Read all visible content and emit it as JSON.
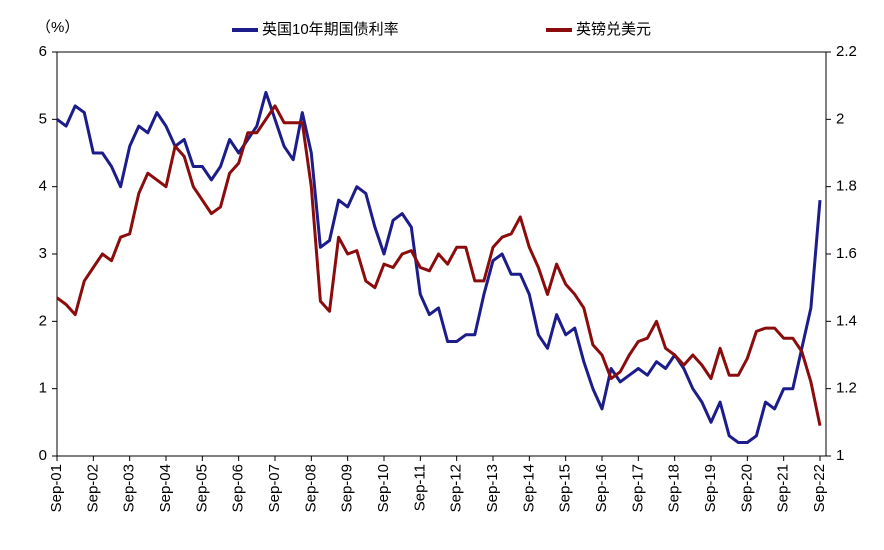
{
  "chart_data": {
    "type": "line",
    "y_unit_label": "（%）",
    "x": [
      "Sep-01",
      "Dec-01",
      "Mar-02",
      "Jun-02",
      "Sep-02",
      "Dec-02",
      "Mar-03",
      "Jun-03",
      "Sep-03",
      "Dec-03",
      "Mar-04",
      "Jun-04",
      "Sep-04",
      "Dec-04",
      "Mar-05",
      "Jun-05",
      "Sep-05",
      "Dec-05",
      "Mar-06",
      "Jun-06",
      "Sep-06",
      "Dec-06",
      "Mar-07",
      "Jun-07",
      "Sep-07",
      "Dec-07",
      "Mar-08",
      "Jun-08",
      "Sep-08",
      "Dec-08",
      "Mar-09",
      "Jun-09",
      "Sep-09",
      "Dec-09",
      "Mar-10",
      "Jun-10",
      "Sep-10",
      "Dec-10",
      "Mar-11",
      "Jun-11",
      "Sep-11",
      "Dec-11",
      "Mar-12",
      "Jun-12",
      "Sep-12",
      "Dec-12",
      "Mar-13",
      "Jun-13",
      "Sep-13",
      "Dec-13",
      "Mar-14",
      "Jun-14",
      "Sep-14",
      "Dec-14",
      "Mar-15",
      "Jun-15",
      "Sep-15",
      "Dec-15",
      "Mar-16",
      "Jun-16",
      "Sep-16",
      "Dec-16",
      "Mar-17",
      "Jun-17",
      "Sep-17",
      "Dec-17",
      "Mar-18",
      "Jun-18",
      "Sep-18",
      "Dec-18",
      "Mar-19",
      "Jun-19",
      "Sep-19",
      "Dec-19",
      "Mar-20",
      "Jun-20",
      "Sep-20",
      "Dec-20",
      "Mar-21",
      "Jun-21",
      "Sep-21",
      "Dec-21",
      "Mar-22",
      "Jun-22",
      "Sep-22"
    ],
    "xticks": [
      "Sep-01",
      "Sep-02",
      "Sep-03",
      "Sep-04",
      "Sep-05",
      "Sep-06",
      "Sep-07",
      "Sep-08",
      "Sep-09",
      "Sep-10",
      "Sep-11",
      "Sep-12",
      "Sep-13",
      "Sep-14",
      "Sep-15",
      "Sep-16",
      "Sep-17",
      "Sep-18",
      "Sep-19",
      "Sep-20",
      "Sep-21",
      "Sep-22"
    ],
    "series": [
      {
        "name": "英国10年期国债利率",
        "color": "#1c1c8a",
        "axis": "y",
        "values": [
          5.0,
          4.9,
          5.2,
          5.1,
          4.5,
          4.5,
          4.3,
          4.0,
          4.6,
          4.9,
          4.8,
          5.1,
          4.9,
          4.6,
          4.7,
          4.3,
          4.3,
          4.1,
          4.3,
          4.7,
          4.5,
          4.7,
          4.9,
          5.4,
          5.0,
          4.6,
          4.4,
          5.1,
          4.5,
          3.1,
          3.2,
          3.8,
          3.7,
          4.0,
          3.9,
          3.4,
          3.0,
          3.5,
          3.6,
          3.4,
          2.4,
          2.1,
          2.2,
          1.7,
          1.7,
          1.8,
          1.8,
          2.4,
          2.9,
          3.0,
          2.7,
          2.7,
          2.4,
          1.8,
          1.6,
          2.1,
          1.8,
          1.9,
          1.4,
          1.0,
          0.7,
          1.3,
          1.1,
          1.2,
          1.3,
          1.2,
          1.4,
          1.3,
          1.5,
          1.3,
          1.0,
          0.8,
          0.5,
          0.8,
          0.3,
          0.2,
          0.2,
          0.3,
          0.8,
          0.7,
          1.0,
          1.0,
          1.6,
          2.2,
          3.8
        ]
      },
      {
        "name": "英镑兑美元",
        "color": "#8b0c0c",
        "axis": "y2",
        "values": [
          1.47,
          1.45,
          1.42,
          1.52,
          1.56,
          1.6,
          1.58,
          1.65,
          1.66,
          1.78,
          1.84,
          1.82,
          1.8,
          1.92,
          1.89,
          1.8,
          1.76,
          1.72,
          1.74,
          1.84,
          1.87,
          1.96,
          1.96,
          2.0,
          2.04,
          1.99,
          1.99,
          1.99,
          1.8,
          1.46,
          1.43,
          1.65,
          1.6,
          1.61,
          1.52,
          1.5,
          1.57,
          1.56,
          1.6,
          1.61,
          1.56,
          1.55,
          1.6,
          1.57,
          1.62,
          1.62,
          1.52,
          1.52,
          1.62,
          1.65,
          1.66,
          1.71,
          1.62,
          1.56,
          1.48,
          1.57,
          1.51,
          1.48,
          1.44,
          1.33,
          1.3,
          1.23,
          1.25,
          1.3,
          1.34,
          1.35,
          1.4,
          1.32,
          1.3,
          1.27,
          1.3,
          1.27,
          1.23,
          1.32,
          1.24,
          1.24,
          1.29,
          1.37,
          1.38,
          1.38,
          1.35,
          1.35,
          1.31,
          1.22,
          1.09
        ]
      }
    ],
    "ylim": [
      0,
      6
    ],
    "yticks": [
      0,
      1,
      2,
      3,
      4,
      5,
      6
    ],
    "y2lim": [
      1,
      2.2
    ],
    "y2ticks": [
      1,
      1.2,
      1.4,
      1.6,
      1.8,
      2,
      2.2
    ],
    "legend": "top"
  }
}
